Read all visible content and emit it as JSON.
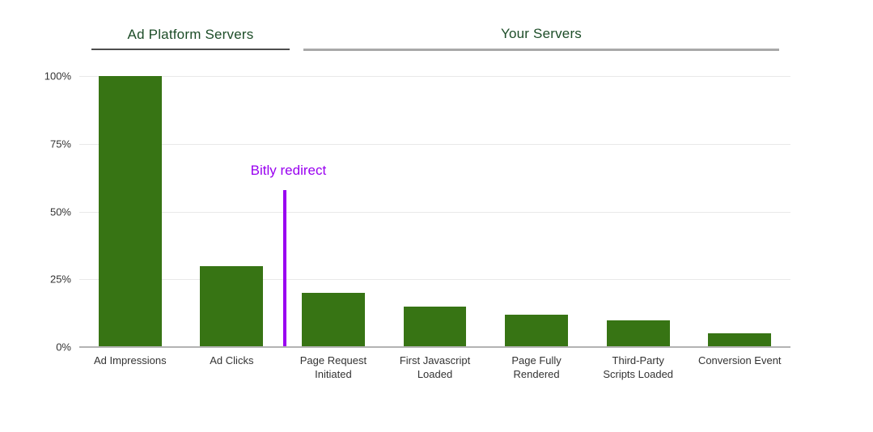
{
  "chart_data": {
    "type": "bar",
    "section_headers": [
      "Ad Platform Servers",
      "Your Servers"
    ],
    "categories": [
      "Ad Impressions",
      "Ad Clicks",
      "Page Request\nInitiated",
      "First Javascript\nLoaded",
      "Page Fully\nRendered",
      "Third-Party\nScripts Loaded",
      "Conversion Event"
    ],
    "values": [
      100,
      30,
      20,
      15,
      12,
      10,
      5
    ],
    "y_ticks": [
      "0%",
      "25%",
      "50%",
      "75%",
      "100%"
    ],
    "ylim": [
      0,
      100
    ],
    "grid": true,
    "legend": "none",
    "colors": {
      "bar": "#377414",
      "section_title": "#1d4d28",
      "annotation": "#9900f0"
    },
    "annotation": {
      "label": "Bitly redirect",
      "position": "between Ad Clicks and Page Request Initiated",
      "line_height_pct": 58
    }
  }
}
